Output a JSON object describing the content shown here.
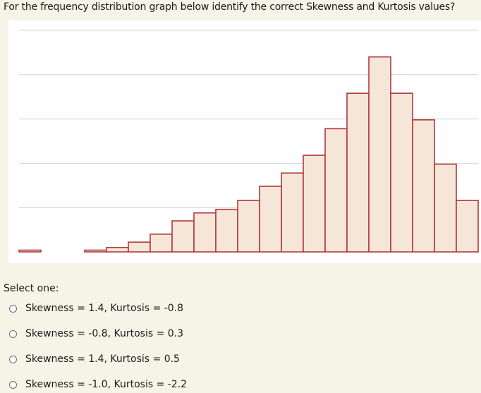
{
  "question": "For the frequency distribution graph below identify the correct Skewness and Kurtosis values?",
  "select_label": "Select one:",
  "options": [
    {
      "label": "Skewness = 1.4, Kurtosis = -0.8"
    },
    {
      "label": "Skewness = -0.8, Kurtosis = 0.3"
    },
    {
      "label": "Skewness = 1.4, Kurtosis = 0.5"
    },
    {
      "label": "Skewness = -1.0, Kurtosis = -2.2"
    }
  ],
  "chart_data": {
    "type": "bar",
    "values": [
      0.2,
      0,
      0,
      0.2,
      0.5,
      1.1,
      2.0,
      3.5,
      4.4,
      4.8,
      5.8,
      7.4,
      8.9,
      10.9,
      13.9,
      17.9,
      22.0,
      17.9,
      14.9,
      9.9,
      5.8
    ],
    "ylim": [
      0,
      25
    ],
    "grid": true,
    "colors": {
      "bar_fill": "#f5e6d8",
      "bar_stroke": "#b03a3f",
      "grid": "#d0d0d0"
    }
  }
}
